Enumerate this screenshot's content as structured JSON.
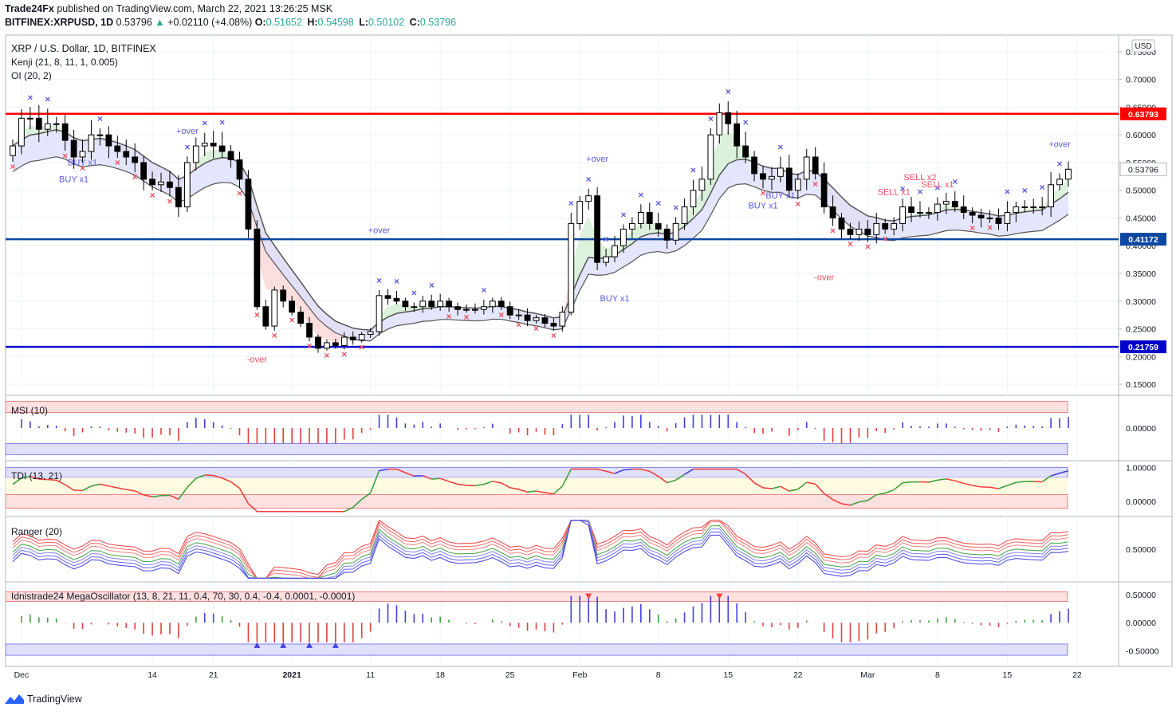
{
  "header": {
    "publisher": "Trade24Fx",
    "published_text": " published on TradingView.com, March 22, 2021 13:26:25 MSK",
    "symbol": "BITFINEX:XRPUSD, 1D",
    "last": "0.53796",
    "change": "+0.02110 (+4.08%)",
    "o_label": "O:",
    "o": "0.51652",
    "h_label": "H:",
    "h": "0.54598",
    "l_label": "L:",
    "l": "0.50102",
    "c_label": "C:",
    "c": "0.53796"
  },
  "legend": {
    "title": "XRP / U.S. Dollar, 1D, BITFINEX",
    "kenji": "Kenji (21, 8, 11, 1, 0.005)",
    "oi": "OI (20, 2)",
    "msi": "MSI (10)",
    "tdi": "TDI (13, 21)",
    "ranger": "Ranger (20)",
    "mega": "Idnistrade24 MegaOscillator (13, 8, 21, 11, 0.4, 70, 30, 0.4, -0.4, 0.0001, -0.0001)"
  },
  "footer": {
    "brand": "TradingView"
  },
  "colors": {
    "up": "#26a69a",
    "red_line": "#ff0000",
    "blue_line": "#0d47a1",
    "dark_blue": "#0000cc",
    "buy": "#5c5ce0",
    "sell": "#f05060"
  },
  "chart_data": {
    "type": "candlestick",
    "currency": "USD",
    "ylim": [
      0.13,
      0.78
    ],
    "y_ticks": [
      "0.75000",
      "0.70000",
      "0.65000",
      "0.60000",
      "0.55000",
      "0.50000",
      "0.45000",
      "0.40000",
      "0.35000",
      "0.30000",
      "0.25000",
      "0.20000",
      "0.15000"
    ],
    "x_tick_labels": [
      "Dec",
      "14",
      "21",
      "2021",
      "11",
      "18",
      "25",
      "Feb",
      "8",
      "15",
      "22",
      "Mar",
      "8",
      "15",
      "22"
    ],
    "x_tick_index": [
      1,
      16,
      23,
      32,
      41,
      49,
      57,
      65,
      74,
      82,
      90,
      98,
      106,
      114,
      122
    ],
    "levels": [
      {
        "label": "0.63793",
        "value": 0.63793,
        "color": "#ff0000"
      },
      {
        "label": "0.41172",
        "value": 0.41172,
        "color": "#0d47a1"
      },
      {
        "label": "0.21759",
        "value": 0.21759,
        "color": "#0000cc"
      }
    ],
    "current_price_label": "0.53796",
    "current_price": 0.53796,
    "annotations": [
      {
        "text": "BUY x1",
        "i": 8,
        "price": 0.545,
        "color": "#5c5ce0"
      },
      {
        "text": "BUY x1",
        "i": 7,
        "price": 0.515,
        "color": "#5c5ce0"
      },
      {
        "text": "+over",
        "i": 20,
        "price": 0.602,
        "color": "#5c5ce0"
      },
      {
        "text": "-over",
        "i": 28,
        "price": 0.19,
        "color": "#f05060"
      },
      {
        "text": "+over",
        "i": 42,
        "price": 0.423,
        "color": "#5c5ce0"
      },
      {
        "text": "+over",
        "i": 67,
        "price": 0.551,
        "color": "#5c5ce0"
      },
      {
        "text": "BUY x1",
        "i": 69,
        "price": 0.3,
        "color": "#5c5ce0"
      },
      {
        "text": "BUY x1",
        "i": 88,
        "price": 0.485,
        "color": "#5c5ce0"
      },
      {
        "text": "BUY x1",
        "i": 86,
        "price": 0.467,
        "color": "#5c5ce0"
      },
      {
        "text": "-over",
        "i": 93,
        "price": 0.338,
        "color": "#f05060"
      },
      {
        "text": "SELL x1",
        "i": 101,
        "price": 0.492,
        "color": "#f05060"
      },
      {
        "text": "SELL x2",
        "i": 104,
        "price": 0.518,
        "color": "#f05060"
      },
      {
        "text": "SELL x1",
        "i": 106,
        "price": 0.505,
        "color": "#f05060"
      },
      {
        "text": "+over",
        "i": 120,
        "price": 0.578,
        "color": "#5c5ce0"
      }
    ],
    "closes": [
      0.58,
      0.63,
      0.63,
      0.61,
      0.62,
      0.62,
      0.59,
      0.56,
      0.57,
      0.6,
      0.6,
      0.58,
      0.57,
      0.56,
      0.55,
      0.52,
      0.51,
      0.515,
      0.505,
      0.47,
      0.55,
      0.58,
      0.585,
      0.58,
      0.57,
      0.555,
      0.52,
      0.43,
      0.29,
      0.255,
      0.32,
      0.3,
      0.28,
      0.26,
      0.235,
      0.215,
      0.225,
      0.22,
      0.235,
      0.23,
      0.24,
      0.245,
      0.31,
      0.305,
      0.3,
      0.29,
      0.29,
      0.3,
      0.29,
      0.3,
      0.29,
      0.285,
      0.285,
      0.285,
      0.29,
      0.3,
      0.29,
      0.275,
      0.275,
      0.265,
      0.27,
      0.26,
      0.255,
      0.28,
      0.44,
      0.48,
      0.49,
      0.37,
      0.38,
      0.4,
      0.43,
      0.44,
      0.46,
      0.44,
      0.43,
      0.41,
      0.44,
      0.47,
      0.5,
      0.52,
      0.6,
      0.64,
      0.62,
      0.58,
      0.56,
      0.53,
      0.52,
      0.525,
      0.54,
      0.5,
      0.52,
      0.56,
      0.53,
      0.47,
      0.45,
      0.43,
      0.42,
      0.43,
      0.42,
      0.44,
      0.43,
      0.44,
      0.47,
      0.46,
      0.46,
      0.46,
      0.475,
      0.48,
      0.47,
      0.46,
      0.455,
      0.45,
      0.45,
      0.44,
      0.46,
      0.47,
      0.47,
      0.47,
      0.47,
      0.51,
      0.52,
      0.538
    ]
  }
}
